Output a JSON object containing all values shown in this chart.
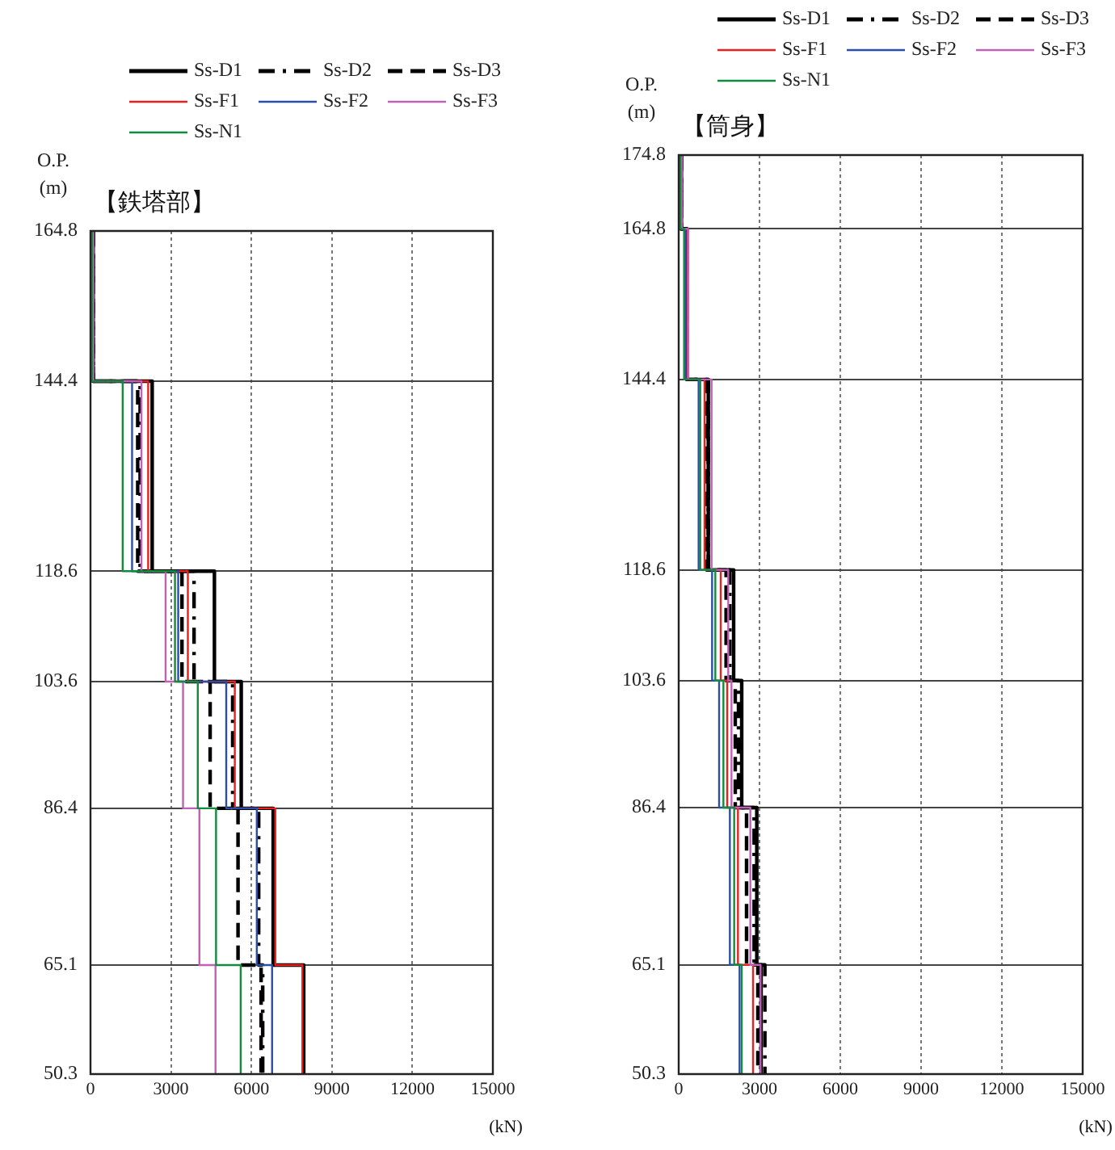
{
  "chart_data": [
    {
      "type": "line",
      "title": "【鉄塔部】",
      "ylabel": "O.P. (m)",
      "xlabel": "(kN)",
      "xlim": [
        0,
        15000
      ],
      "xticks": [
        0,
        3000,
        6000,
        9000,
        12000,
        15000
      ],
      "ylim": [
        50.3,
        164.8
      ],
      "yticks": [
        50.3,
        65.1,
        86.4,
        103.6,
        118.6,
        144.4,
        164.8
      ],
      "grid": true,
      "legend": "top",
      "marker": "none",
      "series": [
        {
          "name": "Ss-D1",
          "color": "#000000",
          "line_style": "solid",
          "x": [
            100,
            100,
            2300,
            2300,
            4620,
            4620,
            5620,
            5620,
            6810,
            6810,
            7950,
            7950
          ],
          "values": [
            164.8,
            144.4,
            144.4,
            118.6,
            118.6,
            103.6,
            103.6,
            86.4,
            86.4,
            65.1,
            65.1,
            50.3
          ]
        },
        {
          "name": "Ss-D2",
          "color": "#000000",
          "line_style": "dashdot",
          "x": [
            100,
            100,
            1850,
            1850,
            3860,
            3860,
            5300,
            5300,
            6270,
            6270,
            6420,
            6420
          ],
          "values": [
            164.8,
            144.4,
            144.4,
            118.6,
            118.6,
            103.6,
            103.6,
            86.4,
            86.4,
            65.1,
            65.1,
            50.3
          ]
        },
        {
          "name": "Ss-D3",
          "color": "#000000",
          "line_style": "dashed",
          "x": [
            100,
            100,
            1760,
            1760,
            3410,
            3410,
            4460,
            4460,
            5500,
            5500,
            6360,
            6360
          ],
          "values": [
            164.8,
            144.4,
            144.4,
            118.6,
            118.6,
            103.6,
            103.6,
            86.4,
            86.4,
            65.1,
            65.1,
            50.3
          ]
        },
        {
          "name": "Ss-F1",
          "color": "#e8201e",
          "line_style": "solid",
          "x": [
            100,
            100,
            2150,
            2150,
            3630,
            3630,
            5380,
            5380,
            6890,
            6890,
            7900,
            7900
          ],
          "values": [
            164.8,
            144.4,
            144.4,
            118.6,
            118.6,
            103.6,
            103.6,
            86.4,
            86.4,
            65.1,
            65.1,
            50.3
          ]
        },
        {
          "name": "Ss-F2",
          "color": "#2b4ea8",
          "line_style": "solid",
          "x": [
            100,
            100,
            1550,
            1550,
            3270,
            3270,
            5060,
            5060,
            6200,
            6200,
            6770,
            6770
          ],
          "values": [
            164.8,
            144.4,
            144.4,
            118.6,
            118.6,
            103.6,
            103.6,
            86.4,
            86.4,
            65.1,
            65.1,
            50.3
          ]
        },
        {
          "name": "Ss-F3",
          "color": "#c060b8",
          "line_style": "solid",
          "x": [
            100,
            100,
            1900,
            1900,
            2800,
            2800,
            3450,
            3450,
            4060,
            4060,
            4660,
            4660
          ],
          "values": [
            164.8,
            144.4,
            144.4,
            118.6,
            118.6,
            103.6,
            103.6,
            86.4,
            86.4,
            65.1,
            65.1,
            50.3
          ]
        },
        {
          "name": "Ss-N1",
          "color": "#138a3c",
          "line_style": "solid",
          "x": [
            50,
            50,
            1200,
            1200,
            3150,
            3150,
            4000,
            4000,
            4680,
            4680,
            5600,
            5600
          ],
          "values": [
            164.8,
            144.4,
            144.4,
            118.6,
            118.6,
            103.6,
            103.6,
            86.4,
            86.4,
            65.1,
            65.1,
            50.3
          ]
        }
      ]
    },
    {
      "type": "line",
      "title": "【筒身】",
      "ylabel": "O.P. (m)",
      "xlabel": "(kN)",
      "xlim": [
        0,
        15000
      ],
      "xticks": [
        0,
        3000,
        6000,
        9000,
        12000,
        15000
      ],
      "ylim": [
        50.3,
        174.8
      ],
      "yticks": [
        50.3,
        65.1,
        86.4,
        103.6,
        118.6,
        144.4,
        164.8,
        174.8
      ],
      "grid": true,
      "legend": "top",
      "marker": "none",
      "series": [
        {
          "name": "Ss-D1",
          "color": "#000000",
          "line_style": "solid",
          "x": [
            100,
            100,
            300,
            300,
            1100,
            1100,
            2040,
            2040,
            2340,
            2340,
            2900,
            2900,
            3060,
            3060
          ],
          "values": [
            174.8,
            164.8,
            164.8,
            144.4,
            144.4,
            118.6,
            118.6,
            103.6,
            103.6,
            86.4,
            86.4,
            65.1,
            65.1,
            50.3
          ]
        },
        {
          "name": "Ss-D2",
          "color": "#000000",
          "line_style": "dashdot",
          "x": [
            100,
            100,
            300,
            300,
            1100,
            1100,
            1900,
            1900,
            2220,
            2220,
            2800,
            2800,
            3200,
            3200
          ],
          "values": [
            174.8,
            164.8,
            164.8,
            144.4,
            144.4,
            118.6,
            118.6,
            103.6,
            103.6,
            86.4,
            86.4,
            65.1,
            65.1,
            50.3
          ]
        },
        {
          "name": "Ss-D3",
          "color": "#000000",
          "line_style": "dashed",
          "x": [
            100,
            100,
            300,
            300,
            1040,
            1040,
            1760,
            1760,
            2100,
            2100,
            2520,
            2520,
            2940,
            2940
          ],
          "values": [
            174.8,
            164.8,
            164.8,
            144.4,
            144.4,
            118.6,
            118.6,
            103.6,
            103.6,
            86.4,
            86.4,
            65.1,
            65.1,
            50.3
          ]
        },
        {
          "name": "Ss-F1",
          "color": "#e8201e",
          "line_style": "solid",
          "x": [
            null,
            null,
            320,
            320,
            960,
            960,
            1560,
            1560,
            1800,
            1800,
            2200,
            2200,
            2760,
            2760
          ],
          "values": [
            null,
            null,
            164.8,
            144.4,
            144.4,
            118.6,
            118.6,
            103.6,
            103.6,
            86.4,
            86.4,
            65.1,
            65.1,
            50.3
          ]
        },
        {
          "name": "Ss-F2",
          "color": "#2b4ea8",
          "line_style": "solid",
          "x": [
            120,
            120,
            250,
            250,
            740,
            740,
            1240,
            1240,
            1500,
            1500,
            1900,
            1900,
            2260,
            2260
          ],
          "values": [
            174.8,
            164.8,
            164.8,
            144.4,
            144.4,
            118.6,
            118.6,
            103.6,
            103.6,
            86.4,
            86.4,
            65.1,
            65.1,
            50.3
          ]
        },
        {
          "name": "Ss-F3",
          "color": "#c060b8",
          "line_style": "solid",
          "x": [
            120,
            120,
            350,
            350,
            1220,
            1220,
            1840,
            1840,
            1960,
            1960,
            2660,
            2660,
            3040,
            3040
          ],
          "values": [
            174.8,
            164.8,
            164.8,
            144.4,
            144.4,
            118.6,
            118.6,
            103.6,
            103.6,
            86.4,
            86.4,
            65.1,
            65.1,
            50.3
          ]
        },
        {
          "name": "Ss-N1",
          "color": "#138a3c",
          "line_style": "solid",
          "x": [
            60,
            60,
            200,
            200,
            800,
            800,
            1360,
            1360,
            1660,
            1660,
            2060,
            2060,
            2340,
            2340
          ],
          "values": [
            174.8,
            164.8,
            164.8,
            144.4,
            144.4,
            118.6,
            118.6,
            103.6,
            103.6,
            86.4,
            86.4,
            65.1,
            65.1,
            50.3
          ]
        }
      ]
    }
  ]
}
